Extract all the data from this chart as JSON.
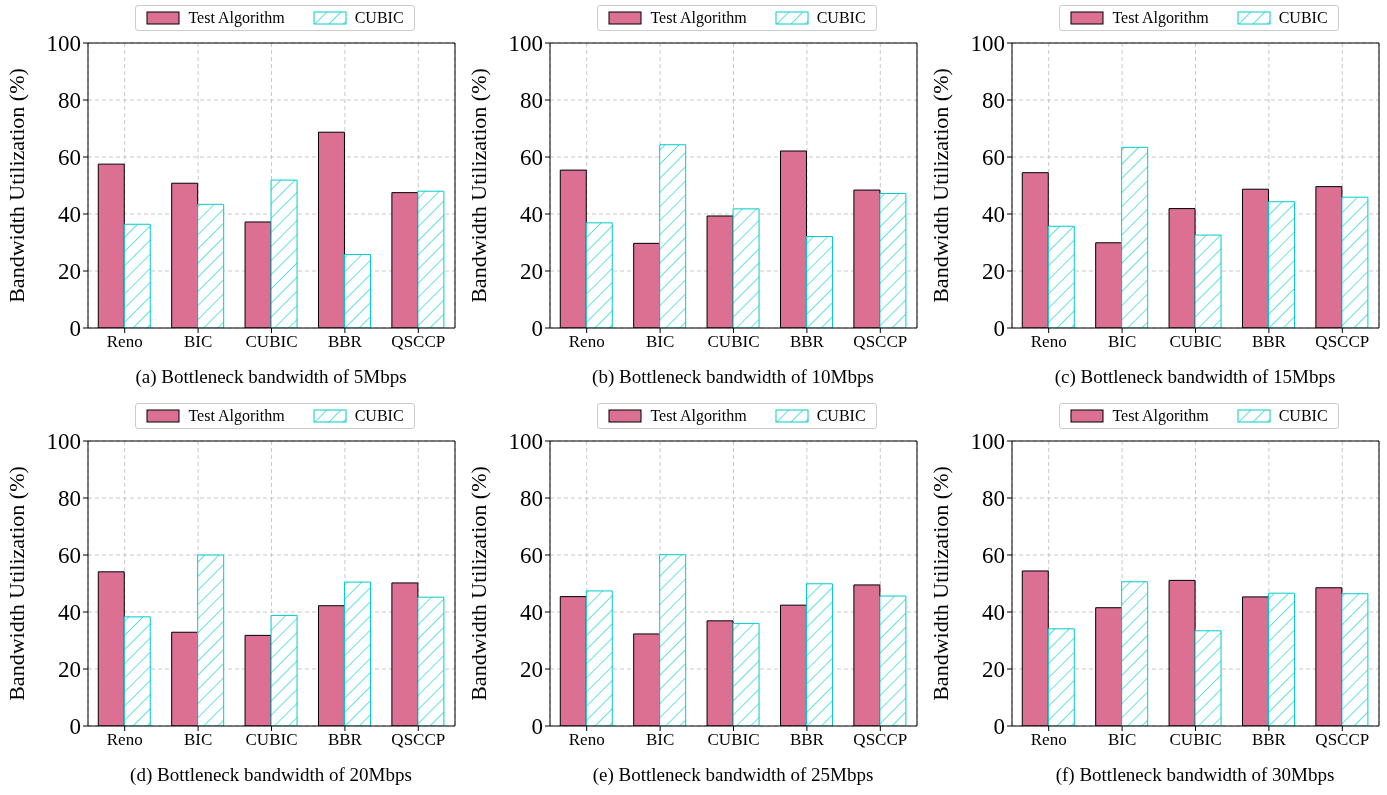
{
  "chart_data": [
    {
      "type": "bar",
      "xlabel": "(a)  Bottleneck bandwidth of 5Mbps",
      "ylabel": "Bandwidth Utilization (%)",
      "categories": [
        "Reno",
        "BIC",
        "CUBIC",
        "BBR",
        "QSCCP"
      ],
      "series": [
        {
          "name": "Test Algorithm",
          "color": "#db7093",
          "values": [
            57.5,
            50.8,
            37.2,
            68.7,
            47.5
          ]
        },
        {
          "name": "CUBIC",
          "color": "#00cccc",
          "values": [
            36.4,
            43.4,
            51.9,
            25.8,
            48.0
          ]
        }
      ],
      "ylim": [
        0,
        100
      ],
      "yticks": [
        0,
        20,
        40,
        60,
        80,
        100
      ],
      "grid": true,
      "legend": "top"
    },
    {
      "type": "bar",
      "xlabel": "(b)  Bottleneck bandwidth of 10Mbps",
      "ylabel": "Bandwidth Utilization (%)",
      "categories": [
        "Reno",
        "BIC",
        "CUBIC",
        "BBR",
        "QSCCP"
      ],
      "series": [
        {
          "name": "Test Algorithm",
          "color": "#db7093",
          "values": [
            55.4,
            29.7,
            39.3,
            62.1,
            48.4
          ]
        },
        {
          "name": "CUBIC",
          "color": "#00cccc",
          "values": [
            36.9,
            64.3,
            41.8,
            32.1,
            47.2
          ]
        }
      ],
      "ylim": [
        0,
        100
      ],
      "yticks": [
        0,
        20,
        40,
        60,
        80,
        100
      ],
      "grid": true,
      "legend": "top"
    },
    {
      "type": "bar",
      "xlabel": "(c)  Bottleneck bandwidth of 15Mbps",
      "ylabel": "Bandwidth Utilization (%)",
      "categories": [
        "Reno",
        "BIC",
        "CUBIC",
        "BBR",
        "QSCCP"
      ],
      "series": [
        {
          "name": "Test Algorithm",
          "color": "#db7093",
          "values": [
            54.5,
            29.9,
            41.9,
            48.7,
            49.6
          ]
        },
        {
          "name": "CUBIC",
          "color": "#00cccc",
          "values": [
            35.7,
            63.4,
            32.6,
            44.3,
            45.9
          ]
        }
      ],
      "ylim": [
        0,
        100
      ],
      "yticks": [
        0,
        20,
        40,
        60,
        80,
        100
      ],
      "grid": true,
      "legend": "top"
    },
    {
      "type": "bar",
      "xlabel": "(d)  Bottleneck bandwidth of 20Mbps",
      "ylabel": "Bandwidth Utilization (%)",
      "categories": [
        "Reno",
        "BIC",
        "CUBIC",
        "BBR",
        "QSCCP"
      ],
      "series": [
        {
          "name": "Test Algorithm",
          "color": "#db7093",
          "values": [
            54.1,
            32.9,
            31.8,
            42.2,
            50.2
          ]
        },
        {
          "name": "CUBIC",
          "color": "#00cccc",
          "values": [
            38.3,
            60.0,
            38.8,
            50.5,
            45.2
          ]
        }
      ],
      "ylim": [
        0,
        100
      ],
      "yticks": [
        0,
        20,
        40,
        60,
        80,
        100
      ],
      "grid": true,
      "legend": "top"
    },
    {
      "type": "bar",
      "xlabel": "(e)  Bottleneck bandwidth of 25Mbps",
      "ylabel": "Bandwidth Utilization (%)",
      "categories": [
        "Reno",
        "BIC",
        "CUBIC",
        "BBR",
        "QSCCP"
      ],
      "series": [
        {
          "name": "Test Algorithm",
          "color": "#db7093",
          "values": [
            45.4,
            32.3,
            36.9,
            42.4,
            49.5
          ]
        },
        {
          "name": "CUBIC",
          "color": "#00cccc",
          "values": [
            47.4,
            60.1,
            36.0,
            49.9,
            45.6
          ]
        }
      ],
      "ylim": [
        0,
        100
      ],
      "yticks": [
        0,
        20,
        40,
        60,
        80,
        100
      ],
      "grid": true,
      "legend": "top"
    },
    {
      "type": "bar",
      "xlabel": "(f)  Bottleneck bandwidth of 30Mbps",
      "ylabel": "Bandwidth Utilization (%)",
      "categories": [
        "Reno",
        "BIC",
        "CUBIC",
        "BBR",
        "QSCCP"
      ],
      "series": [
        {
          "name": "Test Algorithm",
          "color": "#db7093",
          "values": [
            54.4,
            41.5,
            51.1,
            45.3,
            48.5
          ]
        },
        {
          "name": "CUBIC",
          "color": "#00cccc",
          "values": [
            34.1,
            50.6,
            33.4,
            46.6,
            46.4
          ]
        }
      ],
      "ylim": [
        0,
        100
      ],
      "yticks": [
        0,
        20,
        40,
        60,
        80,
        100
      ],
      "grid": true,
      "legend": "top"
    }
  ]
}
